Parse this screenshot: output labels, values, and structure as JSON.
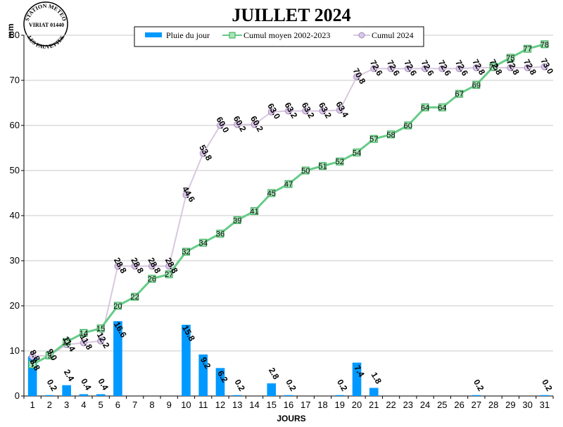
{
  "logo": {
    "top_text": "STATION METEO",
    "middle_text": "VIRIAT 01440",
    "bottom_text": "LES FAUVETTES"
  },
  "chart_data": {
    "type": "bar",
    "title": "JUILLET 2024",
    "xlabel": "JOURS",
    "ylabel": "mm",
    "ylim": [
      0,
      80
    ],
    "yticks": [
      0,
      10,
      20,
      30,
      40,
      50,
      60,
      70,
      80
    ],
    "grid": true,
    "legend_position": "top",
    "x": [
      1,
      2,
      3,
      4,
      5,
      6,
      7,
      8,
      9,
      10,
      11,
      12,
      13,
      14,
      15,
      16,
      17,
      18,
      19,
      20,
      21,
      22,
      23,
      24,
      25,
      26,
      27,
      28,
      29,
      30,
      31
    ],
    "series": [
      {
        "name": "Pluie du jour",
        "kind": "bar",
        "color": "#0099ff",
        "values": [
          8.8,
          0.2,
          2.4,
          0.4,
          0.4,
          16.6,
          0,
          0,
          0,
          15.8,
          9.2,
          6.2,
          0.2,
          0,
          2.8,
          0.2,
          0,
          0,
          0.2,
          7.4,
          1.8,
          0,
          0,
          0,
          0,
          0,
          0.2,
          0,
          0,
          0,
          0.2
        ],
        "labels": [
          "8.8",
          "0.2",
          "2.4",
          "0.4",
          "0.4",
          "16.6",
          "",
          "",
          "",
          "15.8",
          "9.2",
          "6.2",
          "0.2",
          "",
          "2.8",
          "0.2",
          "",
          "",
          "0.2",
          "7.4",
          "1.8",
          "",
          "",
          "",
          "",
          "",
          "0.2",
          "",
          "",
          "",
          "0.2"
        ]
      },
      {
        "name": "Cumul moyen 2002-2023",
        "kind": "line",
        "color": "#66cc88",
        "marker_fill": "#a8e6b8",
        "values": [
          7,
          9,
          12,
          14,
          15,
          20,
          22,
          26,
          27,
          32,
          34,
          36,
          39,
          41,
          45,
          47,
          50,
          51,
          52,
          54,
          57,
          58,
          60,
          64,
          64,
          67,
          69,
          73,
          75,
          77,
          78
        ],
        "labels": [
          "7",
          "9",
          "12",
          "14",
          "15",
          "20",
          "22",
          "26",
          "27",
          "32",
          "34",
          "36",
          "39",
          "41",
          "45",
          "47",
          "50",
          "51",
          "52",
          "54",
          "57",
          "58",
          "60",
          "64",
          "64",
          "67",
          "69",
          "73",
          "75",
          "77",
          "78"
        ]
      },
      {
        "name": "Cumul 2024",
        "kind": "line",
        "color": "#d8c8e0",
        "marker_fill": "#d9c6e8",
        "values": [
          8.8,
          9.0,
          11.4,
          11.8,
          12.2,
          28.8,
          28.8,
          28.8,
          28.8,
          44.6,
          53.8,
          60.0,
          60.2,
          60.2,
          63.0,
          63.2,
          63.2,
          63.2,
          63.4,
          70.8,
          72.6,
          72.6,
          72.6,
          72.6,
          72.6,
          72.6,
          72.8,
          72.8,
          72.8,
          72.8,
          73.0
        ],
        "labels": [
          "8.8",
          "9.0",
          "11.4",
          "11.8",
          "12.2",
          "28.8",
          "28.8",
          "28.8",
          "28.8",
          "44.6",
          "53.8",
          "60.0",
          "60.2",
          "60.2",
          "63.0",
          "63.2",
          "63.2",
          "63.2",
          "63.4",
          "70.8",
          "72.6",
          "72.6",
          "72.6",
          "72.6",
          "72.6",
          "72.6",
          "72.8",
          "72.8",
          "72.8",
          "72.8",
          "73.0"
        ]
      }
    ]
  }
}
